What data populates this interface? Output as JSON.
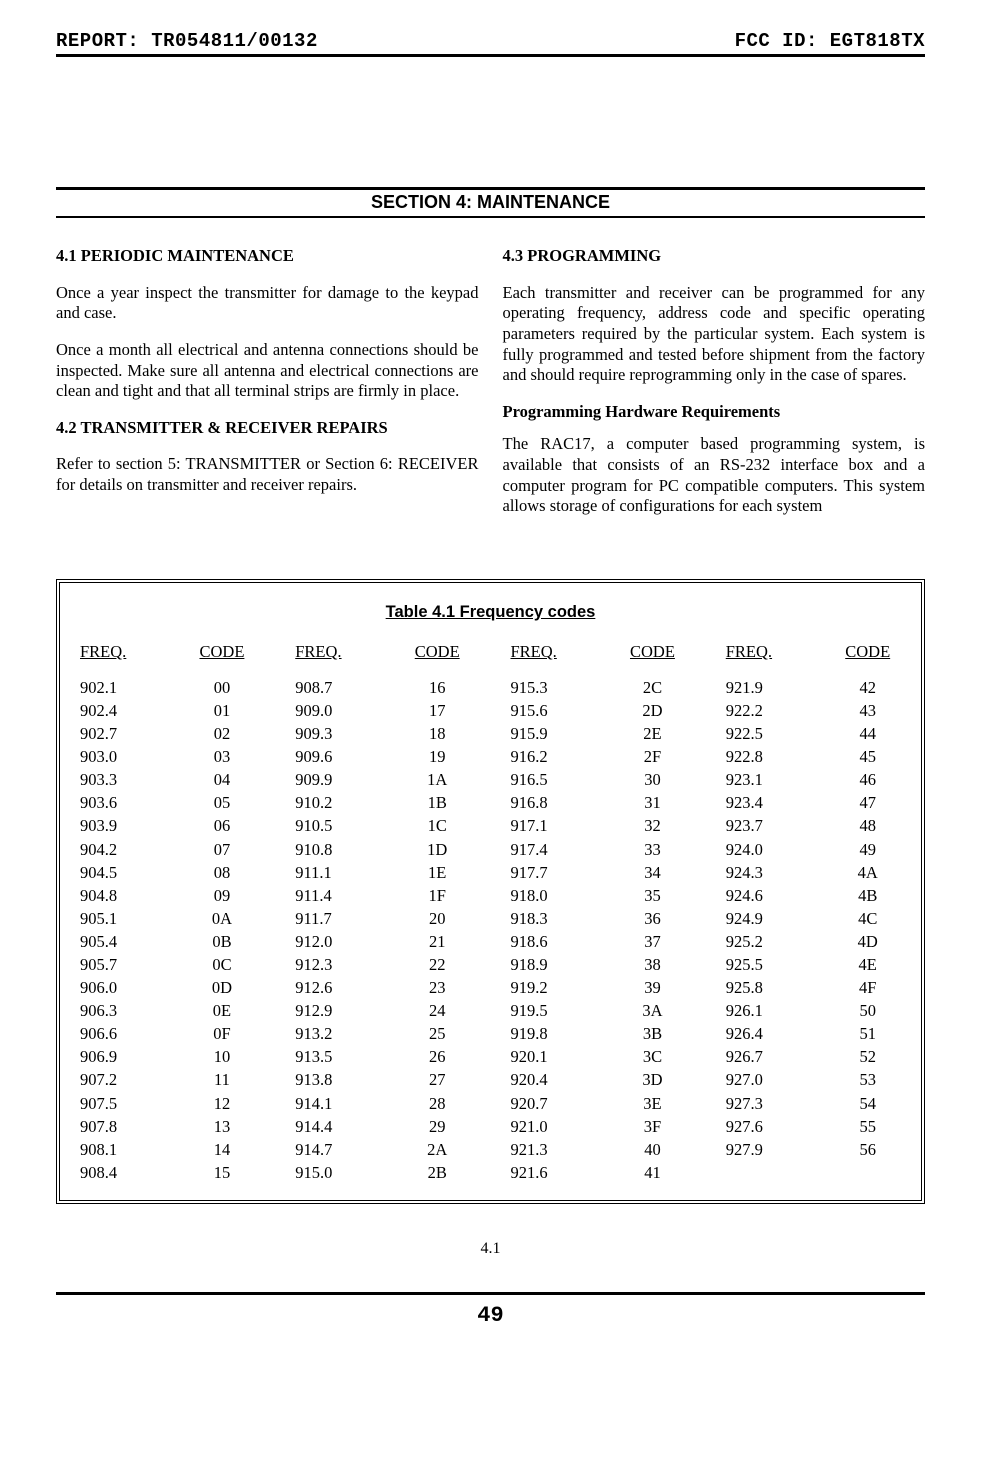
{
  "header": {
    "report_label": "REPORT: TR054811/00132",
    "fcc_label": "FCC ID: EGT818TX"
  },
  "section_title": "SECTION 4:  MAINTENANCE",
  "left_col": {
    "h1": "4.1 PERIODIC MAINTENANCE",
    "p1": "Once a year inspect the transmitter for damage to the keypad and case.",
    "p2": "Once a month all electrical and antenna connections should be inspected. Make sure all antenna and electrical connections are clean and tight and that all terminal strips are firmly in place.",
    "h2": "4.2 TRANSMITTER & RECEIVER REPAIRS",
    "p3": "Refer to section 5: TRANSMITTER or Section 6: RECEIVER for details on transmitter and receiver repairs."
  },
  "right_col": {
    "h1": "4.3 PROGRAMMING",
    "p1": "Each transmitter and receiver can be programmed for any operating frequency, address code and specific operating parameters required by the particular system. Each system is fully programmed and tested before shipment from the factory and should require reprogramming only in the case of spares.",
    "h2": "Programming Hardware Requirements",
    "p2": "The RAC17, a computer based programming system, is available that consists of an RS-232 interface box and a computer program for PC compatible computers. This system allows storage of configurations for each system"
  },
  "table": {
    "title": "Table 4.1 Frequency codes",
    "col_head_freq": "FREQ.",
    "col_head_code": "CODE",
    "columns": [
      [
        [
          "902.1",
          "00"
        ],
        [
          "902.4",
          "01"
        ],
        [
          "902.7",
          "02"
        ],
        [
          "903.0",
          "03"
        ],
        [
          "903.3",
          "04"
        ],
        [
          "903.6",
          "05"
        ],
        [
          "903.9",
          "06"
        ],
        [
          "904.2",
          "07"
        ],
        [
          "904.5",
          "08"
        ],
        [
          "904.8",
          "09"
        ],
        [
          "905.1",
          "0A"
        ],
        [
          "905.4",
          "0B"
        ],
        [
          "905.7",
          "0C"
        ],
        [
          "906.0",
          "0D"
        ],
        [
          "906.3",
          "0E"
        ],
        [
          "906.6",
          "0F"
        ],
        [
          "906.9",
          "10"
        ],
        [
          "907.2",
          "11"
        ],
        [
          "907.5",
          "12"
        ],
        [
          "907.8",
          "13"
        ],
        [
          "908.1",
          "14"
        ],
        [
          "908.4",
          "15"
        ]
      ],
      [
        [
          "908.7",
          "16"
        ],
        [
          "909.0",
          "17"
        ],
        [
          "909.3",
          "18"
        ],
        [
          "909.6",
          "19"
        ],
        [
          "909.9",
          "1A"
        ],
        [
          "910.2",
          "1B"
        ],
        [
          "910.5",
          "1C"
        ],
        [
          "910.8",
          "1D"
        ],
        [
          "911.1",
          "1E"
        ],
        [
          "911.4",
          "1F"
        ],
        [
          "911.7",
          "20"
        ],
        [
          "912.0",
          "21"
        ],
        [
          "912.3",
          "22"
        ],
        [
          "912.6",
          "23"
        ],
        [
          "912.9",
          "24"
        ],
        [
          "913.2",
          "25"
        ],
        [
          "913.5",
          "26"
        ],
        [
          "913.8",
          "27"
        ],
        [
          "914.1",
          "28"
        ],
        [
          "914.4",
          "29"
        ],
        [
          "914.7",
          "2A"
        ],
        [
          "915.0",
          "2B"
        ]
      ],
      [
        [
          "915.3",
          "2C"
        ],
        [
          "915.6",
          "2D"
        ],
        [
          "915.9",
          "2E"
        ],
        [
          "916.2",
          "2F"
        ],
        [
          "916.5",
          "30"
        ],
        [
          "916.8",
          "31"
        ],
        [
          "917.1",
          "32"
        ],
        [
          "917.4",
          "33"
        ],
        [
          "917.7",
          "34"
        ],
        [
          "918.0",
          "35"
        ],
        [
          "918.3",
          "36"
        ],
        [
          "918.6",
          "37"
        ],
        [
          "918.9",
          "38"
        ],
        [
          "919.2",
          "39"
        ],
        [
          "919.5",
          "3A"
        ],
        [
          "919.8",
          "3B"
        ],
        [
          "920.1",
          "3C"
        ],
        [
          "920.4",
          "3D"
        ],
        [
          "920.7",
          "3E"
        ],
        [
          "921.0",
          "3F"
        ],
        [
          "921.3",
          "40"
        ],
        [
          "921.6",
          "41"
        ]
      ],
      [
        [
          "921.9",
          "42"
        ],
        [
          "922.2",
          "43"
        ],
        [
          "922.5",
          "44"
        ],
        [
          "922.8",
          "45"
        ],
        [
          "923.1",
          "46"
        ],
        [
          "923.4",
          "47"
        ],
        [
          "923.7",
          "48"
        ],
        [
          "924.0",
          "49"
        ],
        [
          "924.3",
          "4A"
        ],
        [
          "924.6",
          "4B"
        ],
        [
          "924.9",
          "4C"
        ],
        [
          "925.2",
          "4D"
        ],
        [
          "925.5",
          "4E"
        ],
        [
          "925.8",
          "4F"
        ],
        [
          "926.1",
          "50"
        ],
        [
          "926.4",
          "51"
        ],
        [
          "926.7",
          "52"
        ],
        [
          "927.0",
          "53"
        ],
        [
          "927.3",
          "54"
        ],
        [
          "927.6",
          "55"
        ],
        [
          "927.9",
          "56"
        ]
      ]
    ]
  },
  "footer": {
    "inner_page": "4.1",
    "outer_page": "49"
  }
}
